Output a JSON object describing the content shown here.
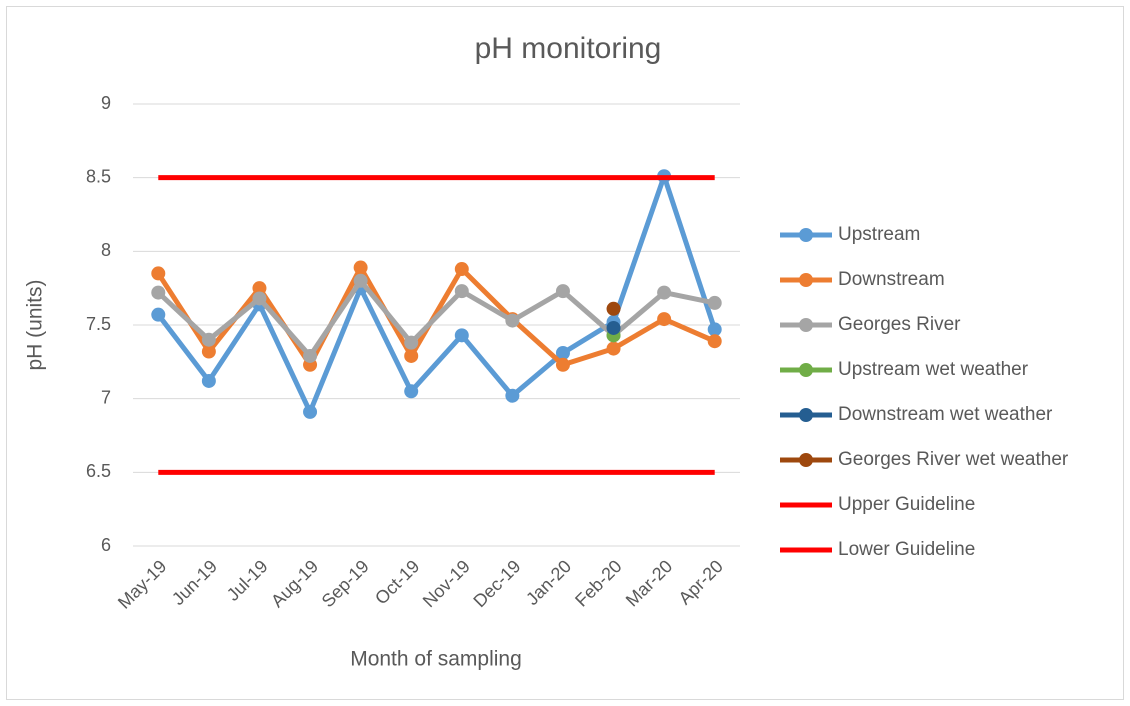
{
  "chart_data": {
    "type": "line",
    "title": "pH monitoring",
    "x_label": "Month of sampling",
    "y_label": "pH (units)",
    "categories": [
      "May-19",
      "Jun-19",
      "Jul-19",
      "Aug-19",
      "Sep-19",
      "Oct-19",
      "Nov-19",
      "Dec-19",
      "Jan-20",
      "Feb-20",
      "Mar-20",
      "Apr-20"
    ],
    "series": [
      {
        "name": "Upstream",
        "color": "#5b9bd5",
        "marker": true,
        "values": [
          7.57,
          7.12,
          7.64,
          6.91,
          7.75,
          7.05,
          7.43,
          7.02,
          7.31,
          7.52,
          8.51,
          7.47
        ]
      },
      {
        "name": "Downstream",
        "color": "#ed7d31",
        "marker": true,
        "values": [
          7.85,
          7.32,
          7.75,
          7.23,
          7.89,
          7.29,
          7.88,
          7.54,
          7.23,
          7.34,
          7.54,
          7.39
        ]
      },
      {
        "name": "Georges River",
        "color": "#a5a5a5",
        "marker": true,
        "values": [
          7.72,
          7.4,
          7.68,
          7.29,
          7.8,
          7.38,
          7.73,
          7.53,
          7.73,
          7.43,
          7.72,
          7.65
        ]
      },
      {
        "name": "Upstream wet weather",
        "color": "#70ad47",
        "marker": true,
        "values": [
          null,
          null,
          null,
          null,
          null,
          null,
          null,
          null,
          null,
          7.43,
          null,
          null
        ]
      },
      {
        "name": "Downstream wet weather",
        "color": "#255e91",
        "marker": true,
        "values": [
          null,
          null,
          null,
          null,
          null,
          null,
          null,
          null,
          null,
          7.48,
          null,
          null
        ]
      },
      {
        "name": "Georges River wet weather",
        "color": "#9e480e",
        "marker": true,
        "values": [
          null,
          null,
          null,
          null,
          null,
          null,
          null,
          null,
          null,
          7.61,
          null,
          null
        ]
      },
      {
        "name": "Upper Guideline",
        "color": "#ff0000",
        "marker": false,
        "values": [
          8.5,
          8.5,
          8.5,
          8.5,
          8.5,
          8.5,
          8.5,
          8.5,
          8.5,
          8.5,
          8.5,
          8.5
        ]
      },
      {
        "name": "Lower Guideline",
        "color": "#ff0000",
        "marker": false,
        "values": [
          6.5,
          6.5,
          6.5,
          6.5,
          6.5,
          6.5,
          6.5,
          6.5,
          6.5,
          6.5,
          6.5,
          6.5
        ]
      }
    ],
    "ylim": [
      6,
      9
    ],
    "yticks": [
      6,
      6.5,
      7,
      7.5,
      8,
      8.5,
      9
    ],
    "grid": true,
    "legend": "right"
  }
}
